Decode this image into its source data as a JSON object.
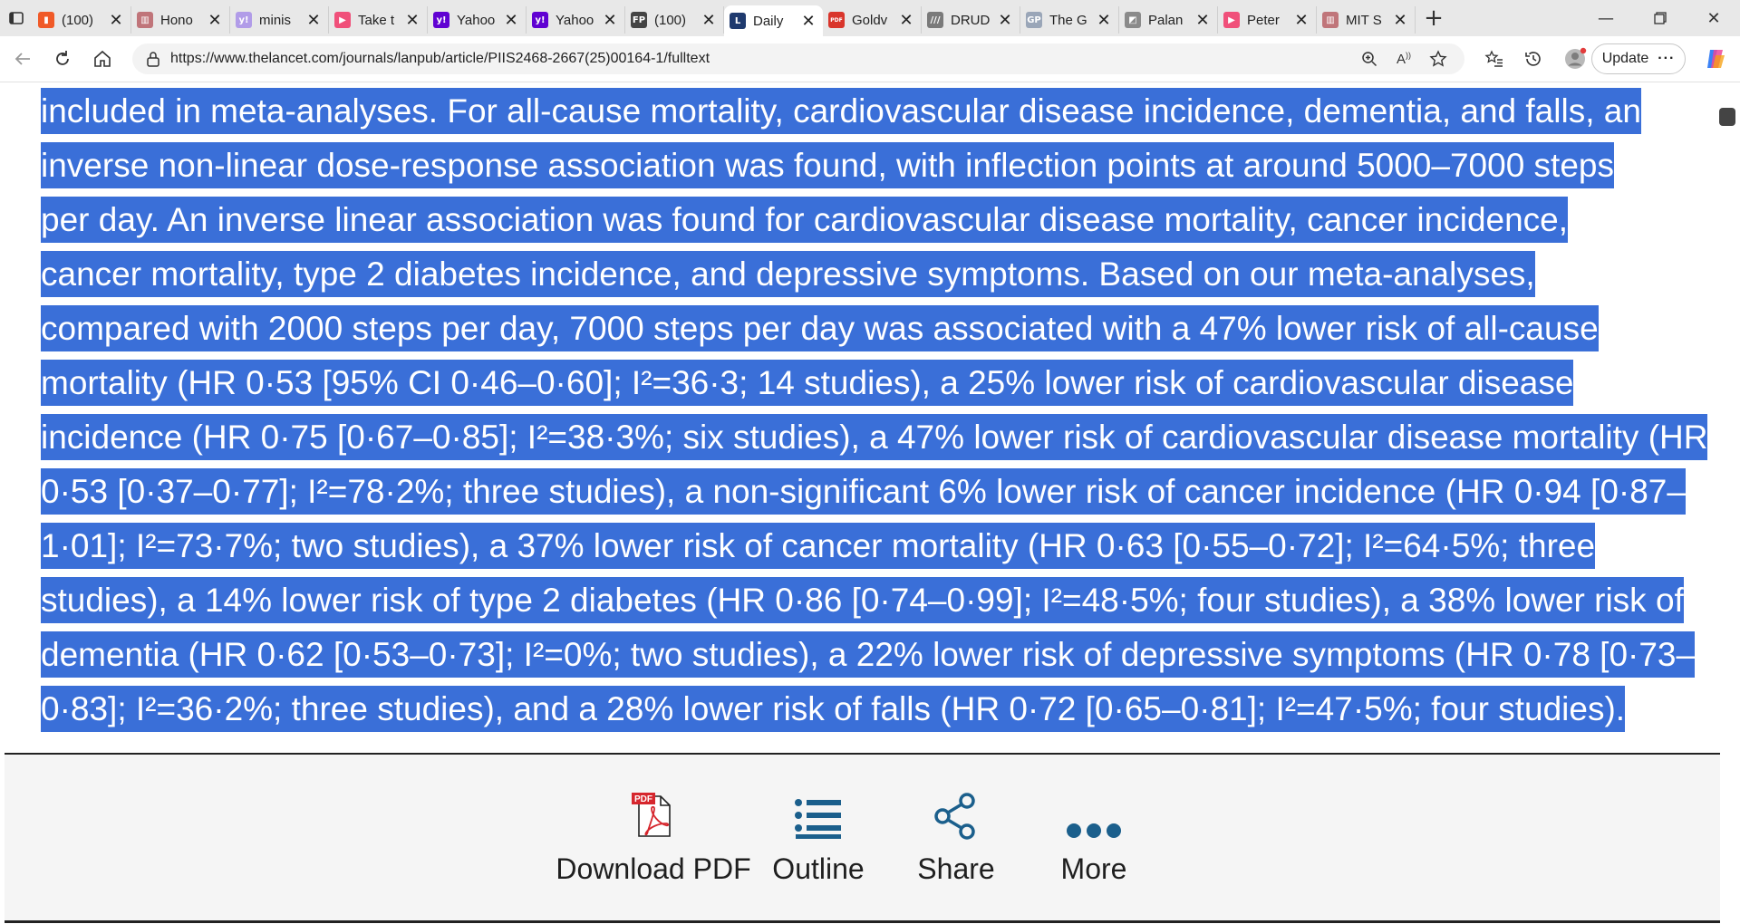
{
  "browser": {
    "tabs": [
      {
        "title": "(100)",
        "icon": "bookmark-icon",
        "color": "#f05a28",
        "glyph": "▮"
      },
      {
        "title": "Hono",
        "icon": "building-icon",
        "color": "#c0757a",
        "glyph": "▥"
      },
      {
        "title": "minis",
        "icon": "yahoo-icon",
        "color": "#b19ce8",
        "glyph": "y!"
      },
      {
        "title": "Take t",
        "icon": "youtube-icon",
        "color": "#f0507a",
        "glyph": "▶"
      },
      {
        "title": "Yahoo",
        "icon": "yahoo-icon",
        "color": "#6001d2",
        "glyph": "y!"
      },
      {
        "title": "Yahoo",
        "icon": "yahoo-icon",
        "color": "#6001d2",
        "glyph": "y!"
      },
      {
        "title": "(100)",
        "icon": "fp-icon",
        "color": "#444444",
        "glyph": "FP"
      },
      {
        "title": "Daily",
        "icon": "lancet-icon",
        "color": "#1f3a6e",
        "glyph": "L",
        "active": true
      },
      {
        "title": "Goldv",
        "icon": "pdf-icon",
        "color": "#d9352b",
        "glyph": "PDF"
      },
      {
        "title": "DRUD",
        "icon": "drud-icon",
        "color": "#7a7a7a",
        "glyph": "///"
      },
      {
        "title": "The G",
        "icon": "gp-icon",
        "color": "#9aa6b8",
        "glyph": "GP"
      },
      {
        "title": "Palan",
        "icon": "image-icon",
        "color": "#8a8a8a",
        "glyph": "◩"
      },
      {
        "title": "Peter",
        "icon": "youtube-icon",
        "color": "#f0507a",
        "glyph": "▶"
      },
      {
        "title": "MIT S",
        "icon": "building-icon",
        "color": "#c0757a",
        "glyph": "▥"
      }
    ],
    "new_tab_label": "+",
    "url": "https://www.thelancet.com/journals/lanpub/article/PIIS2468-2667(25)00164-1/fulltext",
    "update_label": "Update",
    "more_label": "···"
  },
  "article": {
    "lines": [
      "included in meta-analyses. For all-cause mortality, cardiovascular disease incidence, dementia, and falls, an",
      "inverse non-linear dose-response association was found, with inflection points at around 5000–7000 steps",
      "per day. An inverse linear association was found for cardiovascular disease mortality, cancer incidence,",
      "cancer mortality, type 2 diabetes incidence, and depressive symptoms. Based on our meta-analyses,",
      "compared with 2000 steps per day, 7000 steps per day was associated with a 47% lower risk of all-cause",
      "mortality (HR 0·53 [95% CI 0·46–0·60]; I²=36·3; 14 studies), a 25% lower risk of cardiovascular disease",
      "incidence (HR 0·75 [0·67–0·85]; I²=38·3%; six studies), a 47% lower risk of cardiovascular disease mortality (HR",
      "0·53 [0·37–0·77]; I²=78·2%; three studies), a non-significant 6% lower risk of cancer incidence (HR 0·94 [0·87–",
      "1·01]; I²=73·7%; two studies), a 37% lower risk of cancer mortality (HR 0·63 [0·55–0·72]; I²=64·5%; three",
      "studies), a 14% lower risk of type 2 diabetes (HR 0·86 [0·74–0·99]; I²=48·5%; four studies), a 38% lower risk of",
      "dementia (HR 0·62 [0·53–0·73]; I²=0%; two studies), a 22% lower risk of depressive symptoms (HR 0·78 [0·73–",
      "0·83]; I²=36·2%; three studies), and a 28% lower risk of falls (HR 0·72 [0·65–0·81]; I²=47·5%; four studies)."
    ],
    "selection_color": "#3a6fd8"
  },
  "actions": {
    "download_pdf": "Download PDF",
    "outline": "Outline",
    "share": "Share",
    "more": "More",
    "accent": "#1b5f8c"
  }
}
